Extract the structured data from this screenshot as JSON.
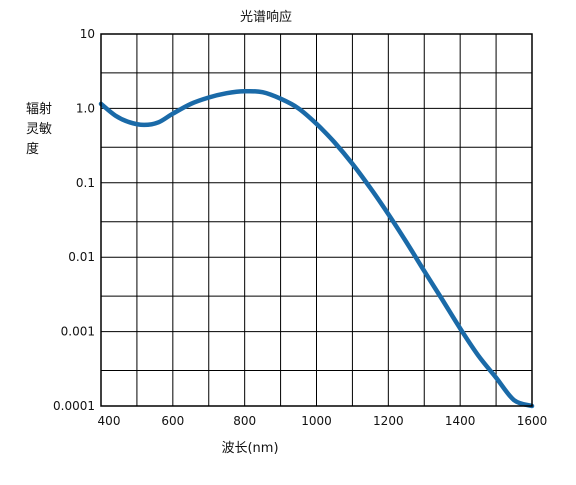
{
  "chart_data": {
    "type": "line",
    "title": "光谱响应",
    "xlabel": "波长(nm)",
    "ylabel_lines": [
      "辐射",
      "灵敏",
      "度"
    ],
    "yscale": "log",
    "xlim": [
      400,
      1600
    ],
    "ylim": [
      0.0001,
      10
    ],
    "x_ticks": [
      400,
      600,
      800,
      1000,
      1200,
      1400,
      1600
    ],
    "x_tick_labels": [
      "400",
      "600",
      "800",
      "1000",
      "1200",
      "1400",
      "1600"
    ],
    "y_ticks": [
      0.0001,
      0.001,
      0.01,
      0.1,
      1,
      10
    ],
    "y_tick_labels": [
      "0.0001",
      "0.001",
      "0.01",
      "0.1",
      "1.0",
      "10"
    ],
    "x_minor_grid": [
      500,
      700,
      900,
      1100,
      1300,
      1500
    ],
    "y_minor_grid": [
      0.0003,
      0.003,
      0.03,
      0.3,
      3
    ],
    "grid": true,
    "series": [
      {
        "color": "#1a6aa8",
        "x": [
          400,
          440,
          480,
          520,
          560,
          600,
          650,
          700,
          750,
          800,
          850,
          900,
          950,
          1000,
          1050,
          1100,
          1150,
          1200,
          1250,
          1300,
          1350,
          1400,
          1450,
          1500,
          1550,
          1600
        ],
        "y": [
          1.15,
          0.8,
          0.65,
          0.6,
          0.65,
          0.85,
          1.15,
          1.4,
          1.6,
          1.7,
          1.65,
          1.35,
          1.0,
          0.62,
          0.35,
          0.18,
          0.085,
          0.038,
          0.016,
          0.0065,
          0.0027,
          0.0011,
          0.00048,
          0.00024,
          0.00012,
          0.0001
        ]
      }
    ]
  }
}
